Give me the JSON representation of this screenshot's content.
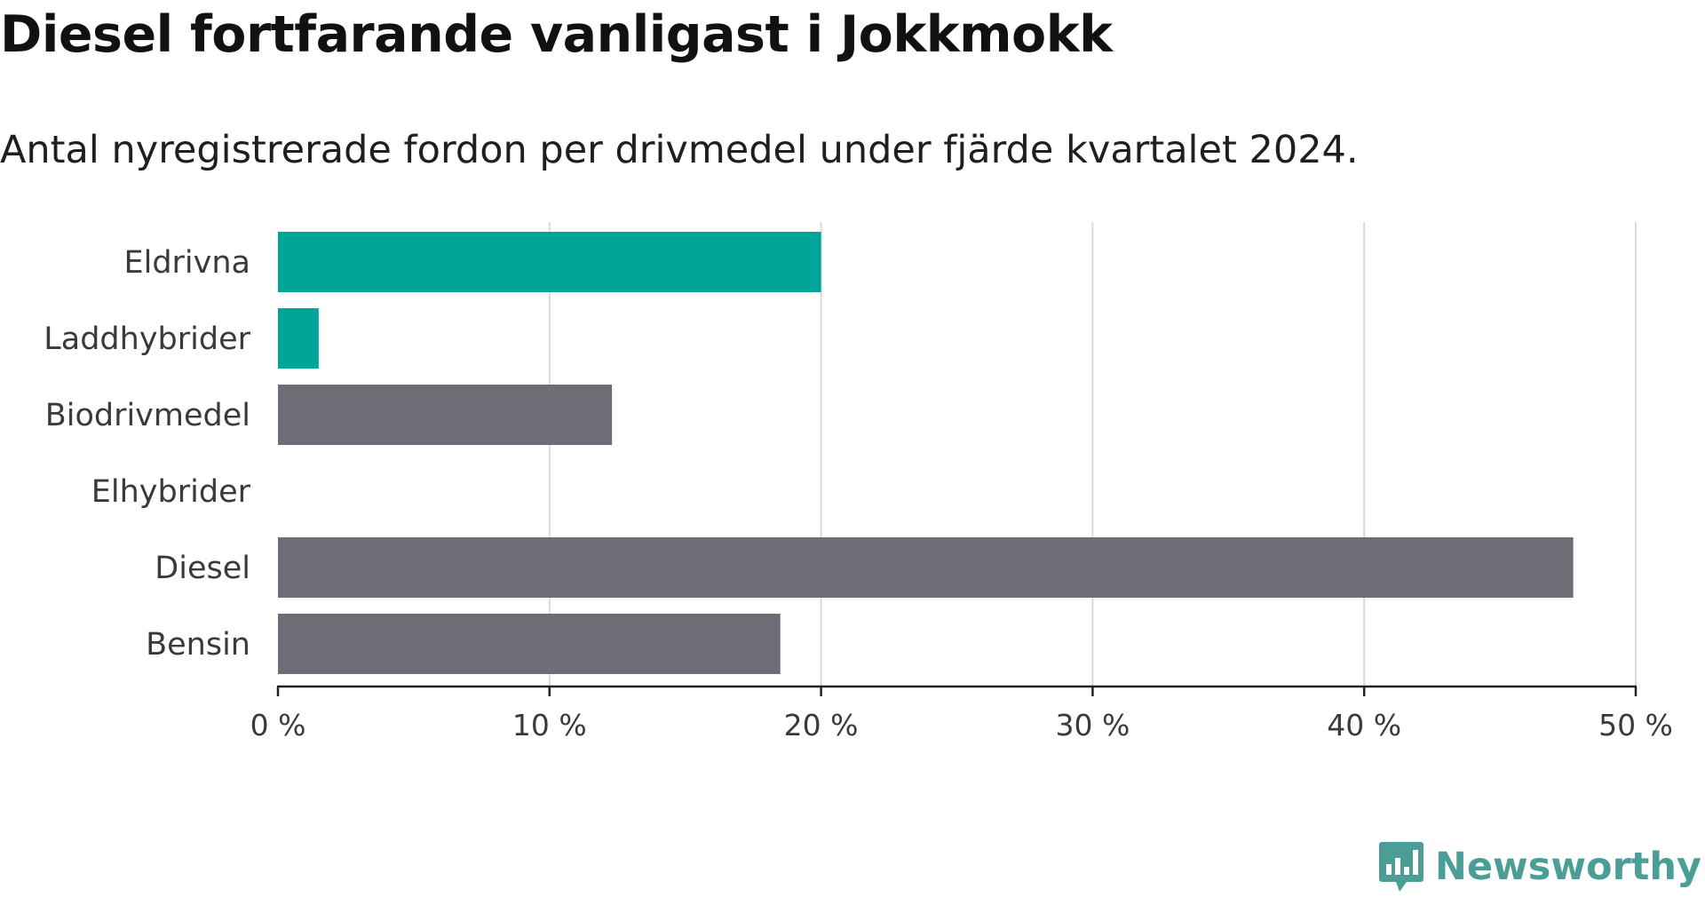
{
  "header": {
    "title": "Diesel fortfarande vanligast i Jokkmokk",
    "subtitle": "Antal nyregistrerade fordon per drivmedel under fjärde kvartalet 2024."
  },
  "chart_data": {
    "type": "bar",
    "orientation": "horizontal",
    "categories": [
      "Eldrivna",
      "Laddhybrider",
      "Biodrivmedel",
      "Elhybrider",
      "Diesel",
      "Bensin"
    ],
    "values": [
      20.0,
      1.5,
      12.3,
      0,
      47.7,
      18.5
    ],
    "bar_colors": [
      "#00a59a",
      "#00a59a",
      "#6e6d76",
      "#6e6d76",
      "#6e6d76",
      "#6e6d76"
    ],
    "xlim": [
      0,
      50
    ],
    "xticks": [
      0,
      10,
      20,
      30,
      40,
      50
    ],
    "xtick_labels": [
      "0 %",
      "10 %",
      "20 %",
      "30 %",
      "40 %",
      "50 %"
    ],
    "grid": true,
    "gridline_color": "#d9d9d9"
  },
  "brand": {
    "name": "Newsworthy",
    "color": "#4a9e95",
    "icon": "bar-chart-badge-icon"
  }
}
